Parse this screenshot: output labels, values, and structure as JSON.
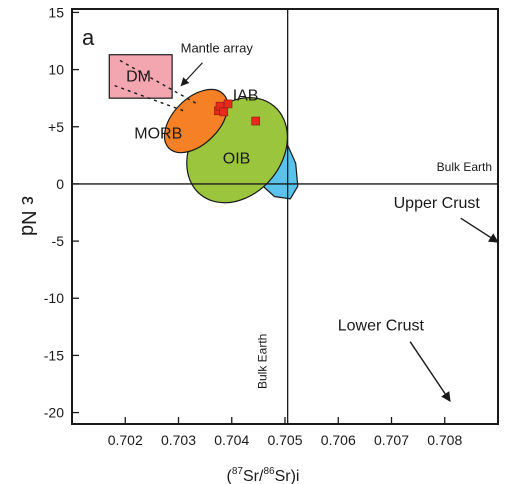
{
  "chart_data": {
    "type": "scatter",
    "panel_label": "a",
    "xlabel": "(87Sr/86Sr)i",
    "xlabel_parts": {
      "open": "(",
      "sup1": "87",
      "el1": "Sr/",
      "sup2": "86",
      "el2": "Sr)i"
    },
    "ylabel": "ε Nd",
    "xlim": [
      0.701,
      0.709
    ],
    "ylim": [
      -21,
      15.3
    ],
    "x_ticks": [
      0.702,
      0.703,
      0.704,
      0.705,
      0.706,
      0.707,
      0.708
    ],
    "x_tick_labels": [
      "0.702",
      "0.703",
      "0.704",
      "0.705",
      "0.706",
      "0.707",
      "0.708"
    ],
    "y_ticks": [
      15,
      10,
      5,
      0,
      -5,
      -10,
      -15,
      -20
    ],
    "y_tick_labels": [
      "15",
      "10",
      "+5",
      "0",
      "-5",
      "-10",
      "-15",
      "-20"
    ],
    "reference_lines": {
      "bulk_earth_x": 0.70505,
      "bulk_earth_y": 0,
      "label_horizontal": "Bulk Earth",
      "label_vertical": "Bulk Earth"
    },
    "fields": [
      {
        "name": "DM",
        "shape": "rect",
        "x0": 0.7017,
        "x1": 0.70288,
        "y0": 7.5,
        "y1": 11.3,
        "color": "#f4a6b0"
      },
      {
        "name": "IAB",
        "shape": "polygon",
        "color": "#59c3eb",
        "points": [
          [
            0.7033,
            5.6
          ],
          [
            0.7035,
            6.4
          ],
          [
            0.7038,
            7.2
          ],
          [
            0.7042,
            7.1
          ],
          [
            0.7046,
            6.1
          ],
          [
            0.705,
            3.9
          ],
          [
            0.7052,
            1.8
          ],
          [
            0.70524,
            -0.2
          ],
          [
            0.7051,
            -1.3
          ],
          [
            0.7048,
            -1.1
          ],
          [
            0.7044,
            0.6
          ],
          [
            0.7038,
            3.3
          ],
          [
            0.7034,
            4.6
          ]
        ]
      },
      {
        "name": "OIB",
        "shape": "ellipse",
        "cx": 0.7041,
        "cy": 2.95,
        "rx": 0.00108,
        "ry": 3.9,
        "rotate_deg": -50,
        "color": "#9bc53d"
      },
      {
        "name": "MORB",
        "shape": "ellipse",
        "cx": 0.70333,
        "cy": 5.5,
        "rx": 0.00072,
        "ry": 2.0,
        "rotate_deg": -45,
        "color": "#f58025"
      }
    ],
    "field_label_positions": [
      {
        "name": "DM",
        "x": 0.70225,
        "y": 9.5
      },
      {
        "name": "IAB",
        "x": 0.70426,
        "y": 7.8
      },
      {
        "name": "OIB",
        "x": 0.70409,
        "y": 2.3
      },
      {
        "name": "MORB",
        "x": 0.70262,
        "y": 4.5
      }
    ],
    "mantle_array": {
      "label": "Mantle array",
      "label_x": 0.70304,
      "label_y": 11.5,
      "arrow_from": [
        0.70345,
        10.6
      ],
      "arrow_to": [
        0.70305,
        8.6
      ],
      "band_upper": [
        [
          0.7019,
          10.8
        ],
        [
          0.70335,
          7.0
        ]
      ],
      "band_lower": [
        [
          0.7018,
          8.6
        ],
        [
          0.70315,
          6.3
        ]
      ]
    },
    "samples": {
      "marker": "square",
      "color": "#e8291c",
      "points": [
        [
          0.70375,
          6.4
        ],
        [
          0.70378,
          6.8
        ],
        [
          0.70385,
          6.3
        ],
        [
          0.70393,
          7.0
        ],
        [
          0.70445,
          5.5
        ]
      ]
    },
    "annotations": [
      {
        "text": "Upper Crust",
        "x": 0.70785,
        "y": -1.6,
        "arrow_from": [
          0.7083,
          -3.0
        ],
        "arrow_to": [
          0.709,
          -5.1
        ]
      },
      {
        "text": "Lower Crust",
        "x": 0.7068,
        "y": -12.3,
        "arrow_from": [
          0.70735,
          -13.8
        ],
        "arrow_to": [
          0.7081,
          -19.0
        ]
      }
    ]
  }
}
